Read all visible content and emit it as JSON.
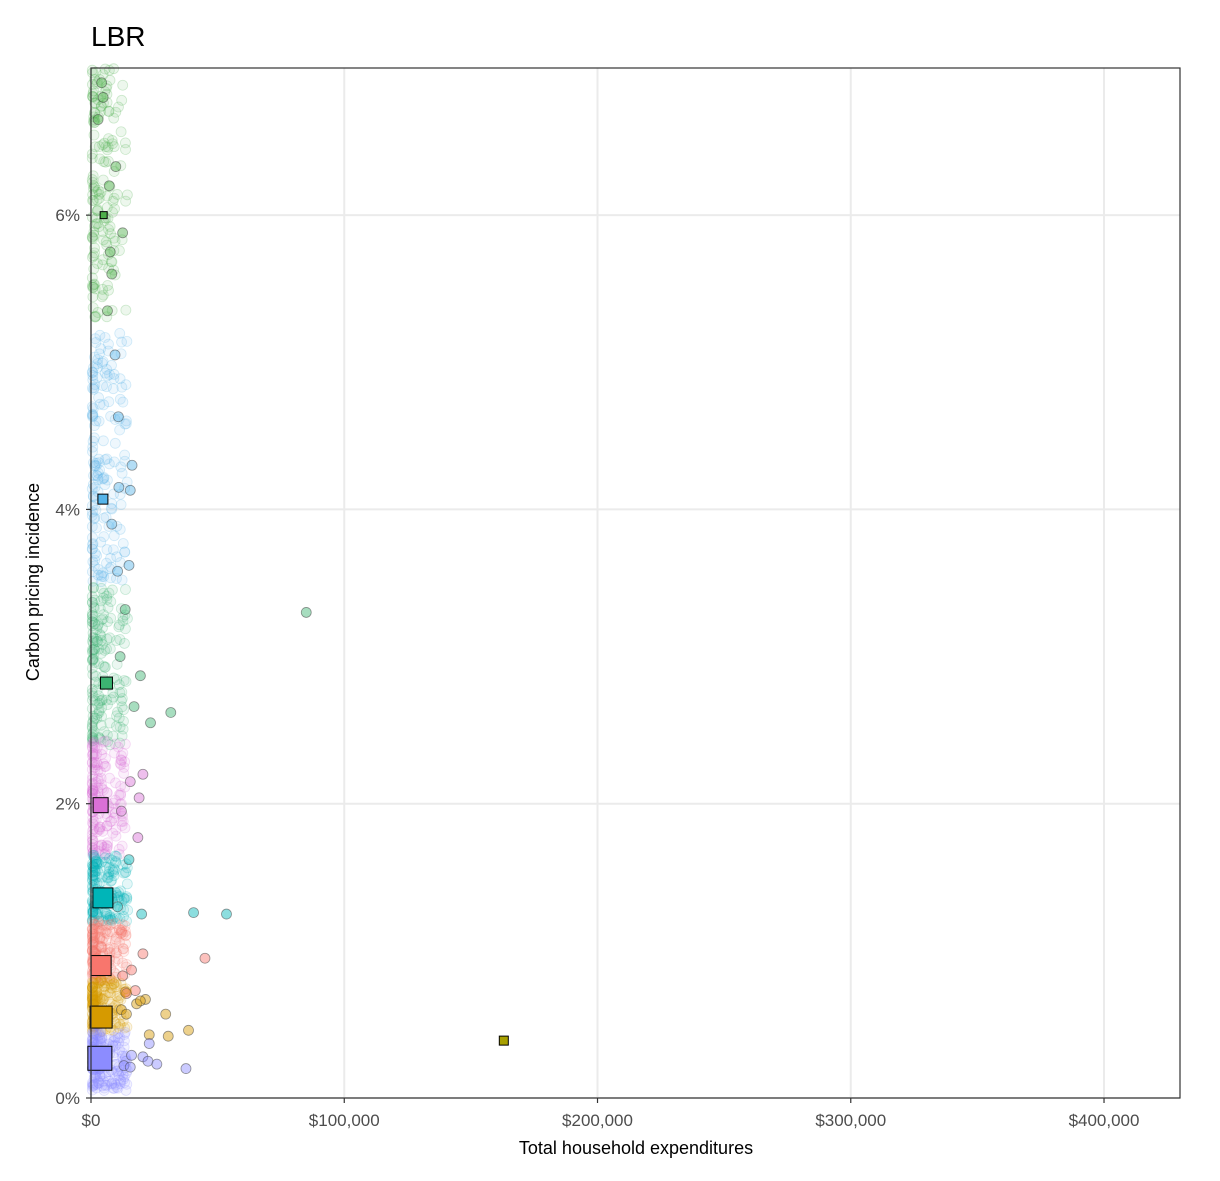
{
  "chart_data": {
    "type": "scatter",
    "title": "LBR",
    "xlabel": "Total household expenditures",
    "ylabel": "Carbon pricing incidence",
    "xlim": [
      0,
      430000
    ],
    "ylim": [
      0,
      7
    ],
    "x_ticks": [
      0,
      100000,
      200000,
      300000,
      400000
    ],
    "x_tick_labels": [
      "$0",
      "$100,000",
      "$200,000",
      "$300,000",
      "$400,000"
    ],
    "y_ticks": [
      0,
      2,
      4,
      6
    ],
    "y_tick_labels": [
      "0%",
      "2%",
      "4%",
      "6%"
    ],
    "grid": true,
    "legend": "none",
    "groups": [
      {
        "color": "#4daf4a",
        "y_range": [
          5.3,
          7.0
        ],
        "mean": {
          "x": 5000,
          "y": 6.0,
          "size": 7
        },
        "outliers": [
          {
            "x": 9800,
            "y": 6.33
          },
          {
            "x": 4200,
            "y": 6.9
          },
          {
            "x": 4800,
            "y": 6.8
          },
          {
            "x": 7200,
            "y": 6.2
          },
          {
            "x": 12500,
            "y": 5.88
          },
          {
            "x": 7600,
            "y": 5.75
          },
          {
            "x": 8200,
            "y": 5.6
          },
          {
            "x": 6500,
            "y": 5.35
          },
          {
            "x": 2800,
            "y": 6.65
          }
        ]
      },
      {
        "color": "#56b4e9",
        "y_range": [
          3.5,
          5.2
        ],
        "mean": {
          "x": 4700,
          "y": 4.07,
          "size": 10
        },
        "outliers": [
          {
            "x": 9500,
            "y": 5.05
          },
          {
            "x": 10800,
            "y": 4.63
          },
          {
            "x": 16200,
            "y": 4.3
          },
          {
            "x": 15500,
            "y": 4.13
          },
          {
            "x": 11000,
            "y": 4.15
          },
          {
            "x": 15000,
            "y": 3.62
          },
          {
            "x": 10500,
            "y": 3.58
          },
          {
            "x": 8200,
            "y": 3.9
          }
        ]
      },
      {
        "color": "#3cb371",
        "y_range": [
          2.4,
          3.5
        ],
        "mean": {
          "x": 6100,
          "y": 2.82,
          "size": 12
        },
        "outliers": [
          {
            "x": 85000,
            "y": 3.3
          },
          {
            "x": 31500,
            "y": 2.62
          },
          {
            "x": 23500,
            "y": 2.55
          },
          {
            "x": 19500,
            "y": 2.87
          },
          {
            "x": 13500,
            "y": 3.32
          },
          {
            "x": 17000,
            "y": 2.66
          },
          {
            "x": 11500,
            "y": 3.0
          }
        ]
      },
      {
        "color": "#da70d6",
        "y_range": [
          1.65,
          2.45
        ],
        "mean": {
          "x": 3800,
          "y": 1.99,
          "size": 15
        },
        "outliers": [
          {
            "x": 12000,
            "y": 1.95
          },
          {
            "x": 20500,
            "y": 2.2
          },
          {
            "x": 19000,
            "y": 2.04
          },
          {
            "x": 18500,
            "y": 1.77
          },
          {
            "x": 15500,
            "y": 2.15
          }
        ]
      },
      {
        "color": "#00b5b8",
        "y_range": [
          1.2,
          1.65
        ],
        "mean": {
          "x": 4700,
          "y": 1.36,
          "size": 20
        },
        "outliers": [
          {
            "x": 40500,
            "y": 1.26
          },
          {
            "x": 53500,
            "y": 1.25
          },
          {
            "x": 20000,
            "y": 1.25
          },
          {
            "x": 15000,
            "y": 1.62
          },
          {
            "x": 10500,
            "y": 1.3
          }
        ]
      },
      {
        "color": "#f8766d",
        "y_range": [
          0.8,
          1.2
        ],
        "mean": {
          "x": 4000,
          "y": 0.9,
          "size": 20
        },
        "outliers": [
          {
            "x": 45000,
            "y": 0.95
          },
          {
            "x": 20500,
            "y": 0.98
          },
          {
            "x": 16000,
            "y": 0.87
          },
          {
            "x": 17500,
            "y": 0.73
          },
          {
            "x": 12500,
            "y": 0.83
          },
          {
            "x": 13500,
            "y": 0.72
          },
          {
            "x": 14000,
            "y": 0.71
          }
        ]
      },
      {
        "color": "#d69a00",
        "y_range": [
          0.45,
          0.8
        ],
        "mean": {
          "x": 4000,
          "y": 0.55,
          "size": 22
        },
        "outliers": [
          {
            "x": 29500,
            "y": 0.57
          },
          {
            "x": 38500,
            "y": 0.46
          },
          {
            "x": 30500,
            "y": 0.42
          },
          {
            "x": 23000,
            "y": 0.43
          },
          {
            "x": 18000,
            "y": 0.64
          },
          {
            "x": 21500,
            "y": 0.67
          },
          {
            "x": 19500,
            "y": 0.66
          },
          {
            "x": 12000,
            "y": 0.6
          },
          {
            "x": 14000,
            "y": 0.57
          }
        ]
      },
      {
        "color": "#8c8cff",
        "y_range": [
          0.05,
          0.45
        ],
        "mean": {
          "x": 3500,
          "y": 0.27,
          "size": 24
        },
        "outliers": [
          {
            "x": 37500,
            "y": 0.2
          },
          {
            "x": 23000,
            "y": 0.37
          },
          {
            "x": 20500,
            "y": 0.28
          },
          {
            "x": 16000,
            "y": 0.29
          },
          {
            "x": 22500,
            "y": 0.25
          },
          {
            "x": 26000,
            "y": 0.23
          },
          {
            "x": 13000,
            "y": 0.22
          },
          {
            "x": 15500,
            "y": 0.21
          }
        ]
      },
      {
        "color": "#a8a000",
        "y_range": [
          0.3,
          0.5
        ],
        "mean": {
          "x": 163000,
          "y": 0.39,
          "size": 9
        },
        "outliers": []
      }
    ]
  }
}
